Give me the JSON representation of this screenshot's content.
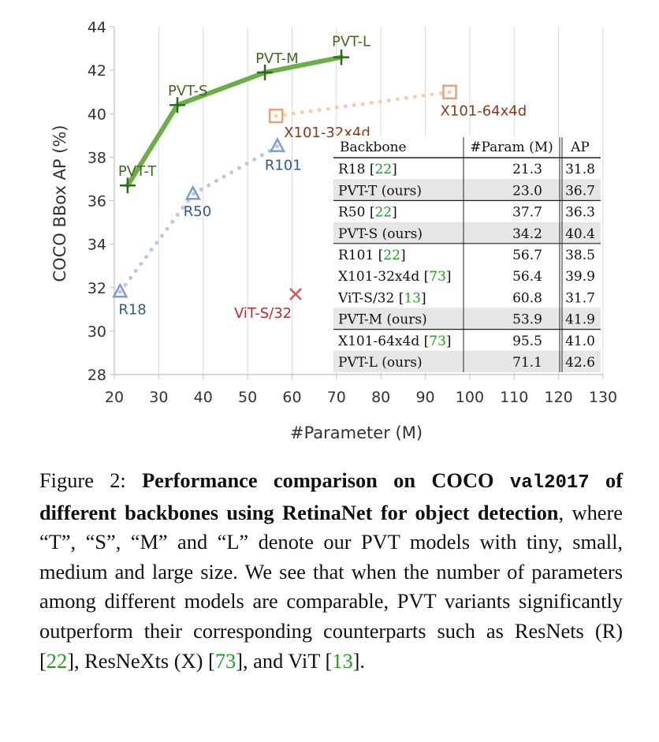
{
  "chart_data": {
    "type": "line",
    "xlabel": "#Parameter (M)",
    "ylabel": "COCO BBox AP (%)",
    "xlim": [
      20,
      130
    ],
    "ylim": [
      28,
      44
    ],
    "xticks": [
      20,
      30,
      40,
      50,
      60,
      70,
      80,
      90,
      100,
      110,
      120,
      130
    ],
    "yticks": [
      28,
      30,
      32,
      34,
      36,
      38,
      40,
      42,
      44
    ],
    "grid": "vertical",
    "series": [
      {
        "points": [
          {
            "label": "PVT-T",
            "x": 23.0,
            "y": 36.7
          },
          {
            "label": "PVT-S",
            "x": 34.2,
            "y": 40.4
          },
          {
            "label": "PVT-M",
            "x": 53.9,
            "y": 41.9
          },
          {
            "label": "PVT-L",
            "x": 71.1,
            "y": 42.6
          }
        ],
        "color": "#6aaf45",
        "marker_color": "#2d6b1c",
        "label_color": "#3e6b22",
        "style": "solid",
        "marker": "plus"
      },
      {
        "points": [
          {
            "label": "R18",
            "x": 21.3,
            "y": 31.8
          },
          {
            "label": "R50",
            "x": 37.7,
            "y": 36.3
          },
          {
            "label": "R101",
            "x": 56.7,
            "y": 38.5
          }
        ],
        "color": "#b8c8e8",
        "marker_color": "#7c9ad6",
        "label_color": "#2f5b8c",
        "style": "dotted",
        "marker": "triangle"
      },
      {
        "points": [
          {
            "label": "X101-32x4d",
            "x": 56.4,
            "y": 39.9
          },
          {
            "label": "X101-64x4d",
            "x": 95.5,
            "y": 41.0
          }
        ],
        "color": "#f6cdb2",
        "marker_color": "#f0a070",
        "label_color": "#8a3a1a",
        "style": "dotted",
        "marker": "square"
      },
      {
        "points": [
          {
            "label": "ViT-S/32",
            "x": 60.8,
            "y": 31.7
          }
        ],
        "color": "#d9535c",
        "marker_color": "#d9535c",
        "label_color": "#c0282c",
        "style": "none",
        "marker": "x"
      }
    ],
    "table": {
      "headers": [
        "Backbone",
        "#Param (M)",
        "AP"
      ],
      "rows": [
        {
          "name": "R18",
          "cite": "22",
          "param": "21.3",
          "ap": "31.8",
          "shaded": false
        },
        {
          "name": "PVT-T (ours)",
          "cite": "",
          "param": "23.0",
          "ap": "36.7",
          "shaded": true
        },
        {
          "name": "R50",
          "cite": "22",
          "param": "37.7",
          "ap": "36.3",
          "shaded": false
        },
        {
          "name": "PVT-S (ours)",
          "cite": "",
          "param": "34.2",
          "ap": "40.4",
          "shaded": true
        },
        {
          "name": "R101",
          "cite": "22",
          "param": "56.7",
          "ap": "38.5",
          "shaded": false
        },
        {
          "name": "X101-32x4d",
          "cite": "73",
          "param": "56.4",
          "ap": "39.9",
          "shaded": false
        },
        {
          "name": "ViT-S/32",
          "cite": "13",
          "param": "60.8",
          "ap": "31.7",
          "shaded": false
        },
        {
          "name": "PVT-M (ours)",
          "cite": "",
          "param": "53.9",
          "ap": "41.9",
          "shaded": true
        },
        {
          "name": "X101-64x4d",
          "cite": "73",
          "param": "95.5",
          "ap": "41.0",
          "shaded": false
        },
        {
          "name": "PVT-L (ours)",
          "cite": "",
          "param": "71.1",
          "ap": "42.6",
          "shaded": true
        }
      ],
      "group_breaks_after": [
        1,
        3,
        7
      ]
    }
  },
  "caption": {
    "prefix": "Figure 2: ",
    "bold_part1": "Performance comparison on COCO ",
    "bold_mono": "val2017",
    "bold_part2": " of different backbones using RetinaNet for object detection",
    "text1": ", where “T”, “S”, “M” and “L” denote our PVT models with tiny, small, medium and large size. We see that when the number of parameters among different models are comparable, PVT variants significantly outperform their corresponding counterparts such as ResNets (R) [",
    "ref1": "22",
    "text2": "], ResNeXts (X) [",
    "ref2": "73",
    "text3": "], and ViT [",
    "ref3": "13",
    "text4": "]."
  }
}
